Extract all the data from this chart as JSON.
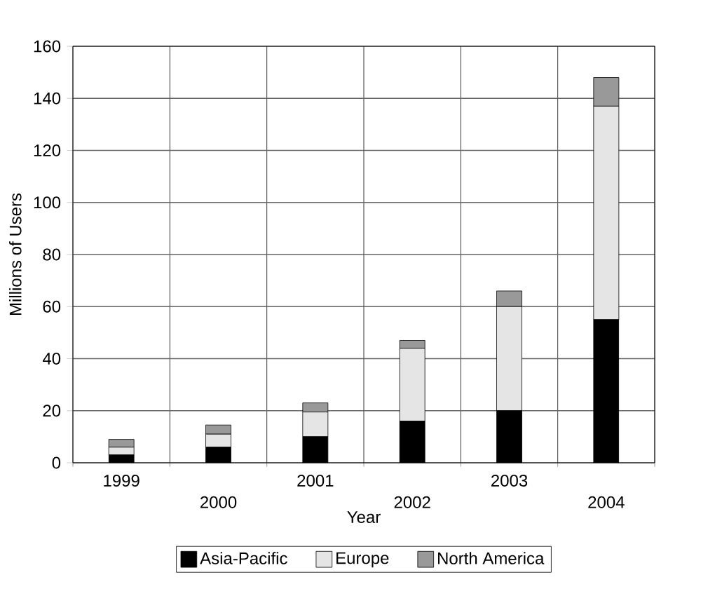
{
  "chart_data": {
    "type": "bar",
    "stacked": true,
    "xlabel": "Year",
    "ylabel": "Millions of Users",
    "categories": [
      "1999",
      "2000",
      "2001",
      "2002",
      "2003",
      "2004"
    ],
    "series": [
      {
        "name": "Asia-Pacific",
        "color": "#000000",
        "values": [
          3,
          6,
          10,
          16,
          20,
          55
        ]
      },
      {
        "name": "Europe",
        "color": "#e5e5e5",
        "values": [
          3,
          5,
          9.5,
          28,
          40,
          82
        ]
      },
      {
        "name": "North America",
        "color": "#999999",
        "values": [
          3,
          3.5,
          3.5,
          3,
          6,
          11
        ]
      }
    ],
    "ylim": [
      0,
      160
    ],
    "yticks": [
      0,
      20,
      40,
      60,
      80,
      100,
      120,
      140,
      160
    ],
    "grid": true,
    "legend": "bottom"
  }
}
